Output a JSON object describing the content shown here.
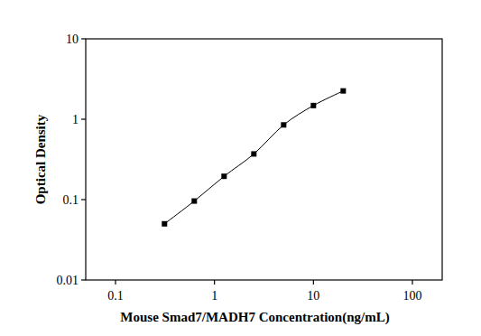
{
  "chart_data": {
    "type": "line",
    "x_label": "Mouse Smad7/MADH7 Concentration(ng/mL)",
    "y_label": "Optical Density",
    "x": [
      0.3125,
      0.625,
      1.25,
      2.5,
      5,
      10,
      20
    ],
    "values": [
      0.05,
      0.096,
      0.195,
      0.37,
      0.85,
      1.48,
      2.25
    ],
    "color": "#000000",
    "marker": "square",
    "line_style": "solid",
    "log": true,
    "xlim": [
      0.05,
      200
    ],
    "xticks": [
      0.1,
      1,
      10,
      100
    ],
    "ylim": [
      0.01,
      10
    ],
    "yticks": [
      0.01,
      0.1,
      1,
      10
    ]
  }
}
